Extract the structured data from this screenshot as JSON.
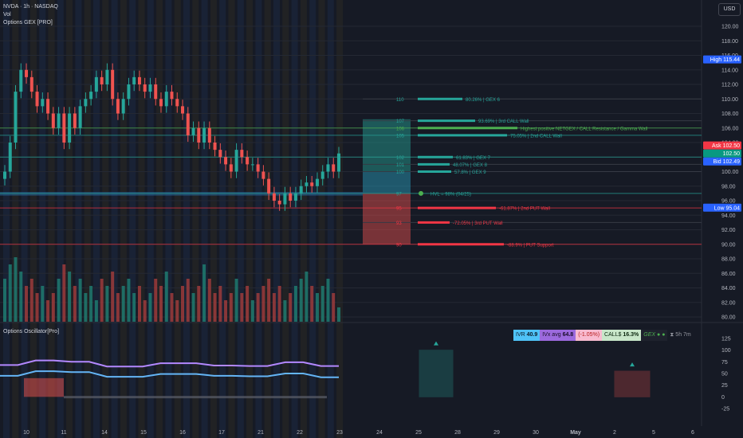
{
  "header": {
    "symbol_line": "NVDA · 1h · NASDAQ",
    "vol_label": "Vol",
    "gex_label": "Options GEX [PRO]",
    "currency_button": "USD"
  },
  "price_scale": {
    "ticks": [
      "120.00",
      "118.00",
      "116.00",
      "114.00",
      "112.00",
      "110.00",
      "108.00",
      "106.00",
      "104.00",
      "102.00",
      "100.00",
      "98.00",
      "96.00",
      "94.00",
      "92.00",
      "90.00",
      "88.00",
      "86.00",
      "84.00",
      "82.00",
      "80.00"
    ],
    "badges": [
      {
        "text": "High 115.44",
        "role": "high",
        "color": "#2962ff"
      },
      {
        "text": "Ask 102.50",
        "role": "ask",
        "color": "#f23645"
      },
      {
        "text": "102.50",
        "role": "last",
        "color": "#089981"
      },
      {
        "text": "Bid 102.49",
        "role": "bid",
        "color": "#2962ff"
      },
      {
        "text": "Low 95.04",
        "role": "low",
        "color": "#2962ff"
      }
    ]
  },
  "osc_scale": {
    "ticks": [
      "125",
      "100",
      "75",
      "50",
      "25",
      "0",
      "-25"
    ]
  },
  "time_axis": {
    "labels": [
      "10",
      "11",
      "14",
      "15",
      "16",
      "17",
      "21",
      "22",
      "23",
      "24",
      "25",
      "28",
      "29",
      "30",
      "May",
      "2",
      "5",
      "6"
    ]
  },
  "gex_levels": [
    {
      "strike": "110",
      "label": "80.26% | GEX 6",
      "color": "#26a69a"
    },
    {
      "strike": "107",
      "label": "93.69% | 3rd CALL Wall",
      "color": "#26a69a"
    },
    {
      "strike": "106",
      "label": "Highest positive NETGEX / CALL Resistance / Gamma Wall",
      "color": "#4caf50"
    },
    {
      "strike": "105",
      "label": "75.05% | 2nd CALL Wall",
      "color": "#26a69a"
    },
    {
      "strike": "102",
      "label": "61.83% | GEX 7",
      "color": "#26a69a"
    },
    {
      "strike": "101",
      "label": "48.07% | GEX 8",
      "color": "#26a69a"
    },
    {
      "strike": "100",
      "label": "57.8% | GEX 9",
      "color": "#26a69a"
    },
    {
      "strike": "97",
      "label": "HVL = 98% (04/25)",
      "color": "#26a69a"
    },
    {
      "strike": "95",
      "label": "-61.87% | 2nd PUT Wall",
      "color": "#f23645"
    },
    {
      "strike": "93",
      "label": "-72.05% | 3rd PUT Wall",
      "color": "#f23645"
    },
    {
      "strike": "90",
      "label": "-88.9% | PUT Support",
      "color": "#f23645"
    }
  ],
  "oscillator": {
    "title": "Options Oscillator[Pro]",
    "stats": {
      "ivr_label": "IVR",
      "ivr_value": "40.9",
      "ivx_label": "IVx avg",
      "ivx_value": "64.8",
      "change": "(-1.05%)",
      "calls_label": "CALL$",
      "calls_value": "16.3%",
      "gex_label": "GEX",
      "timer": "5h 7m"
    }
  },
  "colors": {
    "background": "#161a25",
    "up": "#26a69a",
    "down": "#ef5350",
    "accent": "#2962ff"
  },
  "chart_data": {
    "type": "candlestick",
    "title": "",
    "ylim": [
      79,
      122
    ],
    "hourly_closes": [
      100,
      104,
      111,
      114,
      113,
      111,
      109,
      110,
      108,
      106,
      108,
      104,
      108,
      106,
      109,
      110,
      111,
      113,
      112,
      114,
      110,
      108,
      110,
      112,
      113,
      112,
      111,
      112,
      110,
      109,
      111,
      110,
      109,
      108,
      105,
      106,
      104,
      106,
      104,
      103,
      102,
      101,
      100,
      103,
      102,
      101,
      101,
      100,
      99,
      97,
      96,
      95.5,
      97,
      96,
      97,
      98,
      98.5,
      98,
      99,
      100,
      101,
      100,
      102.5
    ],
    "volume_relative": [
      0.6,
      0.8,
      0.9,
      0.7,
      0.5,
      0.6,
      0.4,
      0.5,
      0.3,
      0.4,
      0.6,
      0.8,
      0.7,
      0.5,
      0.6,
      0.4,
      0.5,
      0.3,
      0.6,
      0.5,
      0.7,
      0.4,
      0.5,
      0.6,
      0.4,
      0.5,
      0.3,
      0.4,
      0.6,
      0.5,
      0.7,
      0.4,
      0.3,
      0.5,
      0.6,
      0.4,
      0.5,
      0.8,
      0.6,
      0.4,
      0.5,
      0.3,
      0.4,
      0.6,
      0.4,
      0.5,
      0.3,
      0.4,
      0.5,
      0.6,
      0.4,
      0.5,
      0.3,
      0.4,
      0.5,
      0.6,
      0.7,
      0.5,
      0.4,
      0.5,
      0.6,
      0.4,
      0.2
    ],
    "oscillator": {
      "ylim": [
        -30,
        130
      ],
      "purple_line": [
        68,
        68,
        78,
        78,
        75,
        75,
        65,
        65,
        65,
        72,
        72,
        72,
        67,
        67,
        66,
        66,
        74,
        74,
        66,
        66
      ],
      "blue_line": [
        45,
        45,
        55,
        55,
        53,
        53,
        43,
        43,
        43,
        49,
        49,
        49,
        45,
        45,
        44,
        44,
        50,
        50,
        42,
        42
      ],
      "bars": [
        {
          "date": "25",
          "value": 100,
          "color": "green"
        },
        {
          "date": "2",
          "value": 55,
          "color": "red"
        }
      ]
    }
  }
}
